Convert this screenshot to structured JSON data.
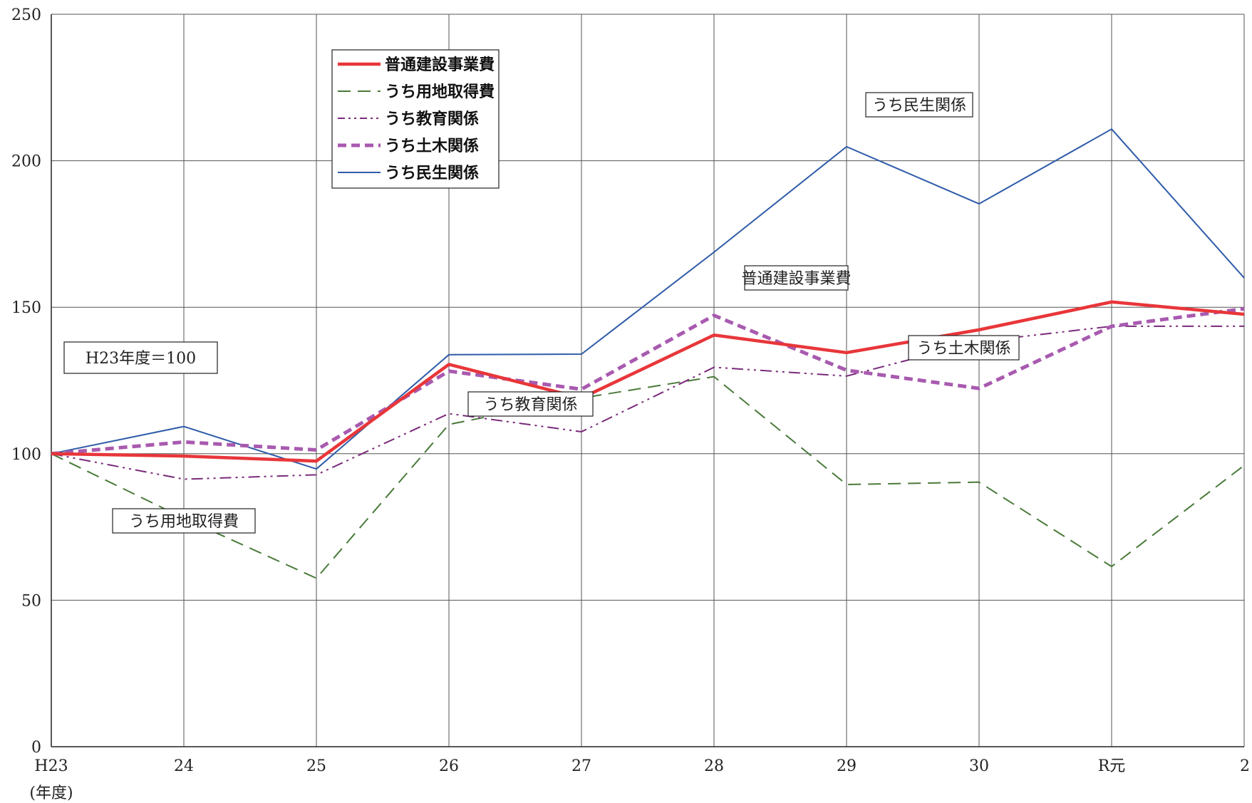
{
  "chart_data": {
    "type": "line",
    "categories": [
      "H23",
      "24",
      "25",
      "26",
      "27",
      "28",
      "29",
      "30",
      "R元",
      "2"
    ],
    "x_unit_label": "(年度)",
    "ylim": [
      0,
      250
    ],
    "yticks": [
      0,
      50,
      100,
      150,
      200,
      250
    ],
    "grid": true,
    "legend_position": "top-center",
    "series": [
      {
        "name": "普通建設事業費",
        "color": "#e8363a",
        "style": "solid-thick",
        "values": [
          100,
          99.2,
          97.5,
          130.5,
          119,
          140.5,
          134.5,
          142.3,
          151.8,
          147.6
        ]
      },
      {
        "name": "うち用地取得費",
        "color": "#4a7a3a",
        "style": "dashed",
        "values": [
          100,
          78,
          57.5,
          110,
          119,
          126.3,
          89.5,
          90.3,
          61.5,
          96
        ]
      },
      {
        "name": "うち教育関係",
        "color": "#7a2a7a",
        "style": "dash-dot-dot",
        "values": [
          100,
          91.3,
          92.8,
          113.7,
          107.5,
          129.5,
          126.5,
          138.3,
          143.5,
          143.5
        ]
      },
      {
        "name": "うち土木関係",
        "color": "#a85aaf",
        "style": "dashed-thick",
        "values": [
          100,
          104,
          101.3,
          128.2,
          122,
          147.2,
          128.5,
          122.3,
          143.5,
          149.5
        ]
      },
      {
        "name": "うち民生関係",
        "color": "#2e5ba8",
        "style": "solid-thin",
        "values": [
          100,
          109.3,
          94.8,
          133.8,
          134,
          168.8,
          204.8,
          185.3,
          210.8,
          160
        ]
      }
    ],
    "annotations": [
      {
        "text": "H23年度＝100"
      },
      {
        "text": "うち民生関係"
      },
      {
        "text": "普通建設事業費"
      },
      {
        "text": "うち土木関係"
      },
      {
        "text": "うち教育関係"
      },
      {
        "text": "うち用地取得費"
      }
    ]
  }
}
